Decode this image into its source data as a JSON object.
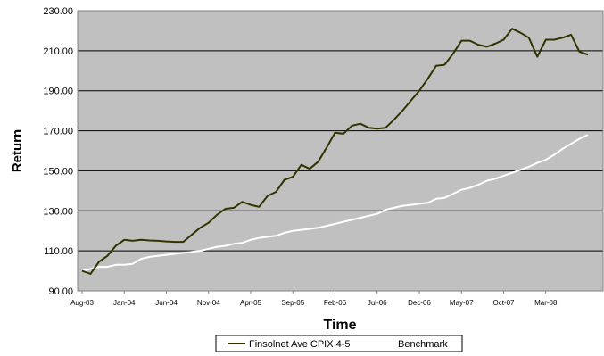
{
  "chart_data": {
    "type": "line",
    "title": "",
    "xlabel": "Time",
    "ylabel": "Return",
    "ylim": [
      90,
      230
    ],
    "y_ticks": [
      "90.00",
      "110.00",
      "130.00",
      "150.00",
      "170.00",
      "190.00",
      "210.00",
      "230.00"
    ],
    "x_tick_labels": [
      "Aug-03",
      "Jan-04",
      "Jun-04",
      "Nov-04",
      "Apr-05",
      "Sep-05",
      "Feb-06",
      "Jul-06",
      "Dec-06",
      "May-07",
      "Oct-07",
      "Mar-08"
    ],
    "x": [
      "Aug-03",
      "Sep-03",
      "Oct-03",
      "Nov-03",
      "Dec-03",
      "Jan-04",
      "Feb-04",
      "Mar-04",
      "Apr-04",
      "May-04",
      "Jun-04",
      "Jul-04",
      "Aug-04",
      "Sep-04",
      "Oct-04",
      "Nov-04",
      "Dec-04",
      "Jan-05",
      "Feb-05",
      "Mar-05",
      "Apr-05",
      "May-05",
      "Jun-05",
      "Jul-05",
      "Aug-05",
      "Sep-05",
      "Oct-05",
      "Nov-05",
      "Dec-05",
      "Jan-06",
      "Feb-06",
      "Mar-06",
      "Apr-06",
      "May-06",
      "Jun-06",
      "Jul-06",
      "Aug-06",
      "Sep-06",
      "Oct-06",
      "Nov-06",
      "Dec-06",
      "Jan-07",
      "Feb-07",
      "Mar-07",
      "Apr-07",
      "May-07",
      "Jun-07",
      "Jul-07",
      "Aug-07",
      "Sep-07",
      "Oct-07",
      "Nov-07",
      "Dec-07",
      "Jan-08",
      "Feb-08",
      "Mar-08",
      "Apr-08",
      "May-08",
      "Jun-08",
      "Jul-08",
      "Aug-08"
    ],
    "grid": "horizontal",
    "background": "#c0c0c0",
    "legend_position": "bottom",
    "series": [
      {
        "name": "Finsolnet Ave CPIX 4-5",
        "color": "#333300",
        "values": [
          100.0,
          98.5,
          104.5,
          107.5,
          112.5,
          115.5,
          115.0,
          115.5,
          115.2,
          115.0,
          114.7,
          114.5,
          114.5,
          118.0,
          121.5,
          124.0,
          128.0,
          131.0,
          131.5,
          134.5,
          133.0,
          132.0,
          137.5,
          139.5,
          145.5,
          147.0,
          153.0,
          151.0,
          154.5,
          161.5,
          169.0,
          168.5,
          172.5,
          173.5,
          171.5,
          171.0,
          171.5,
          175.5,
          180.0,
          185.0,
          190.0,
          196.0,
          202.5,
          203.0,
          208.5,
          215.0,
          215.0,
          213.0,
          212.0,
          213.5,
          215.5,
          221.0,
          219.0,
          216.5,
          207.0,
          215.5,
          215.5,
          216.5,
          218.0,
          209.5,
          208.0
        ]
      },
      {
        "name": "Benchmark",
        "color": "#ffffff",
        "values": [
          100.0,
          101.0,
          102.0,
          102.0,
          103.0,
          103.0,
          103.5,
          106.0,
          107.0,
          107.5,
          108.0,
          108.5,
          109.0,
          109.5,
          110.0,
          111.0,
          112.0,
          112.5,
          113.5,
          114.0,
          115.5,
          116.5,
          117.0,
          117.5,
          119.0,
          120.0,
          120.5,
          121.0,
          121.5,
          122.5,
          123.5,
          124.5,
          125.5,
          126.5,
          127.5,
          128.5,
          130.5,
          131.5,
          132.5,
          133.0,
          133.5,
          134.0,
          136.0,
          136.5,
          138.5,
          140.5,
          141.5,
          143.0,
          145.0,
          146.0,
          147.5,
          149.0,
          150.5,
          152.0,
          154.0,
          155.5,
          158.0,
          161.0,
          163.5,
          166.0,
          168.0
        ]
      }
    ]
  }
}
